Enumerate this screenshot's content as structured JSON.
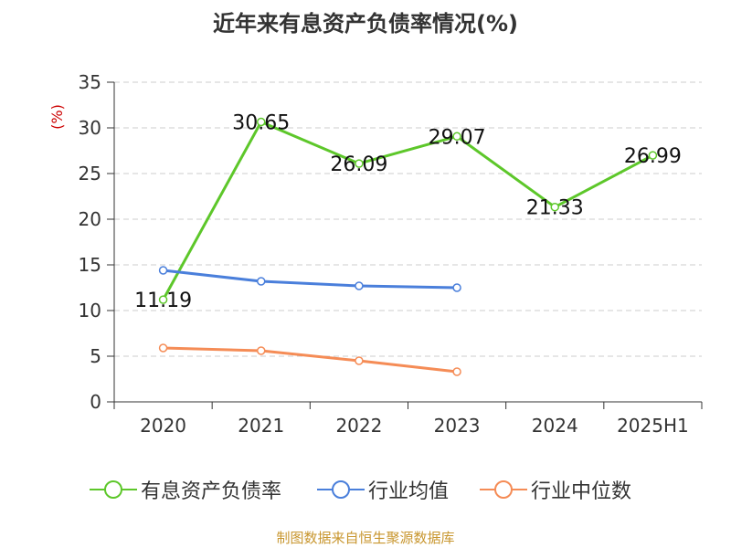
{
  "chart_data": {
    "type": "line",
    "title": "近年来有息资产负债率情况(%)",
    "ylabel": "(%)",
    "categories": [
      "2020",
      "2021",
      "2022",
      "2023",
      "2024",
      "2025H1"
    ],
    "ylim": [
      0,
      35
    ],
    "yticks": [
      "0",
      "5",
      "10",
      "15",
      "20",
      "25",
      "30",
      "35"
    ],
    "grid": true,
    "legend_position": "bottom",
    "series": [
      {
        "name": "有息资产负债率",
        "color": "#5dc72a",
        "values": [
          11.19,
          30.65,
          26.09,
          29.07,
          21.33,
          26.99
        ],
        "labels": [
          "11.19",
          "30.65",
          "26.09",
          "29.07",
          "21.33",
          "26.99"
        ]
      },
      {
        "name": "行业均值",
        "color": "#4a7fdb",
        "values": [
          14.4,
          13.2,
          12.7,
          12.5,
          null,
          null
        ]
      },
      {
        "name": "行业中位数",
        "color": "#f58c56",
        "values": [
          5.9,
          5.6,
          4.5,
          3.3,
          null,
          null
        ]
      }
    ],
    "source": "制图数据来自恒生聚源数据库"
  },
  "colors": {
    "axis": "#333333",
    "grid": "#cccccc",
    "ylabel": "#cc0000",
    "source": "#c8962e"
  }
}
